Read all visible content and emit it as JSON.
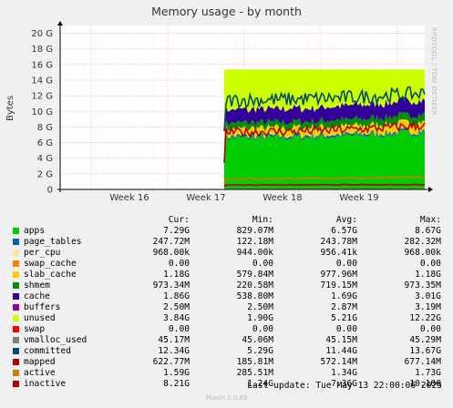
{
  "chart_data": {
    "type": "area",
    "title": "Memory usage - by month",
    "ylabel": "Bytes",
    "ylim": [
      0,
      21000000000
    ],
    "y_ticks": [
      "0",
      "2 G",
      "4 G",
      "6 G",
      "8 G",
      "10 G",
      "12 G",
      "14 G",
      "16 G",
      "18 G",
      "20 G"
    ],
    "x_ticks": [
      "Week 16",
      "Week 17",
      "Week 18",
      "Week 19"
    ],
    "grid": true,
    "value_headers": [
      "Cur:",
      "Min:",
      "Avg:",
      "Max:"
    ],
    "series": [
      {
        "name": "apps",
        "color": "#00cc00",
        "stacked": true,
        "cur": "7.29G",
        "min": "829.07M",
        "avg": "6.57G",
        "max": "8.67G"
      },
      {
        "name": "page_tables",
        "color": "#0066b3",
        "stacked": true,
        "cur": "247.72M",
        "min": "122.18M",
        "avg": "243.78M",
        "max": "282.32M"
      },
      {
        "name": "per_cpu",
        "color": "#ffe6a1",
        "stacked": true,
        "cur": "968.00k",
        "min": "944.00k",
        "avg": "956.41k",
        "max": "968.00k"
      },
      {
        "name": "swap_cache",
        "color": "#ff8000",
        "stacked": true,
        "cur": "0.00",
        "min": "0.00",
        "avg": "0.00",
        "max": "0.00"
      },
      {
        "name": "slab_cache",
        "color": "#ffcc00",
        "stacked": true,
        "cur": "1.18G",
        "min": "579.84M",
        "avg": "977.96M",
        "max": "1.18G"
      },
      {
        "name": "shmem",
        "color": "#008f00",
        "stacked": true,
        "cur": "973.34M",
        "min": "220.58M",
        "avg": "719.15M",
        "max": "973.35M"
      },
      {
        "name": "cache",
        "color": "#330099",
        "stacked": true,
        "cur": "1.86G",
        "min": "538.80M",
        "avg": "1.69G",
        "max": "3.01G"
      },
      {
        "name": "buffers",
        "color": "#990099",
        "stacked": true,
        "cur": "2.50M",
        "min": "2.50M",
        "avg": "2.87M",
        "max": "3.19M"
      },
      {
        "name": "unused",
        "color": "#ccff00",
        "stacked": true,
        "cur": "3.84G",
        "min": "1.90G",
        "avg": "5.21G",
        "max": "12.22G"
      },
      {
        "name": "swap",
        "color": "#ff0000",
        "stacked": true,
        "cur": "0.00",
        "min": "0.00",
        "avg": "0.00",
        "max": "0.00"
      },
      {
        "name": "vmalloc_used",
        "color": "#808080",
        "stacked": false,
        "cur": "45.17M",
        "min": "45.06M",
        "avg": "45.15M",
        "max": "45.29M"
      },
      {
        "name": "committed",
        "color": "#004d66",
        "stacked": false,
        "cur": "12.34G",
        "min": "5.29G",
        "avg": "11.44G",
        "max": "13.67G"
      },
      {
        "name": "mapped",
        "color": "#b30000",
        "stacked": false,
        "cur": "622.77M",
        "min": "185.81M",
        "avg": "572.14M",
        "max": "677.14M"
      },
      {
        "name": "active",
        "color": "#cc7a00",
        "stacked": false,
        "cur": "1.59G",
        "min": "285.51M",
        "avg": "1.34G",
        "max": "1.73G"
      },
      {
        "name": "inactive",
        "color": "#b30000",
        "stacked": false,
        "cur": "8.21G",
        "min": "1.24G",
        "avg": "7.36G",
        "max": "10.10G"
      }
    ]
  },
  "last_update": "Last update: Tue May 13 22:00:06 2025",
  "footer": "Munin 2.0.69",
  "watermark": "RRDTOOL / TOBI OETIKER"
}
